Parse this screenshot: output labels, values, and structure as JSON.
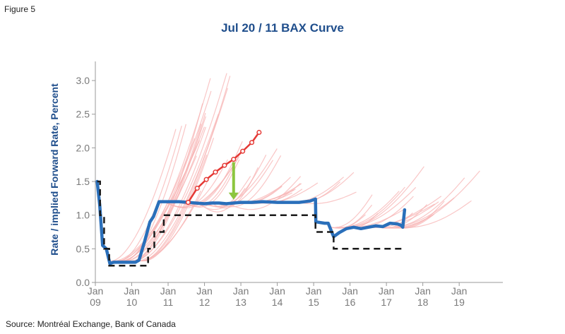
{
  "figure_label": "Figure 5",
  "source_note": "Source: Montréal Exchange, Bank of Canada",
  "colors": {
    "actual_rate": "#2a6fba",
    "policy_rate": "#1a1a1a",
    "forward_curves": "#f7b3b3",
    "highlight_curve": "#e53935",
    "arrow": "#8cc63f",
    "title": "#1f4e8c",
    "axis_text": "#7a7a7a"
  },
  "chart_data": {
    "type": "line",
    "title": "Jul 20 / 11 BAX Curve",
    "ylabel": "Rate / implied Forward Rate, Percent",
    "xlabel": "",
    "xlim": [
      2009,
      2020.2
    ],
    "ylim": [
      0,
      3.2
    ],
    "yticks": [
      "0.0",
      "0.5",
      "1.0",
      "1.5",
      "2.0",
      "2.5",
      "3.0"
    ],
    "xticks": [
      {
        "year": 2009,
        "month": "Jan",
        "yy": "09"
      },
      {
        "year": 2010,
        "month": "Jan",
        "yy": "10"
      },
      {
        "year": 2011,
        "month": "Jan",
        "yy": "11"
      },
      {
        "year": 2012,
        "month": "Jan",
        "yy": "12"
      },
      {
        "year": 2013,
        "month": "Jan",
        "yy": "13"
      },
      {
        "year": 2014,
        "month": "Jan",
        "yy": "14"
      },
      {
        "year": 2015,
        "month": "Jan",
        "yy": "15"
      },
      {
        "year": 2016,
        "month": "Jan",
        "yy": "16"
      },
      {
        "year": 2017,
        "month": "Jan",
        "yy": "17"
      },
      {
        "year": 2018,
        "month": "Jan",
        "yy": "18"
      },
      {
        "year": 2019,
        "month": "Jan",
        "yy": "19"
      }
    ],
    "grid": false,
    "series": [
      {
        "key": "actual",
        "style": "solid-thick",
        "x": [
          2009.05,
          2009.12,
          2009.2,
          2009.3,
          2009.4,
          2009.5,
          2009.7,
          2009.9,
          2010.1,
          2010.2,
          2010.35,
          2010.5,
          2010.6,
          2010.75,
          2011.0,
          2011.3,
          2011.55,
          2011.75,
          2012.0,
          2012.2,
          2012.4,
          2012.6,
          2012.8,
          2013.0,
          2013.3,
          2013.6,
          2014.0,
          2014.3,
          2014.6,
          2014.9,
          2015.05,
          2015.06,
          2015.3,
          2015.4,
          2015.55,
          2015.7,
          2015.9,
          2016.1,
          2016.3,
          2016.5,
          2016.7,
          2016.9,
          2017.1,
          2017.3,
          2017.4,
          2017.45,
          2017.5
        ],
        "y": [
          1.5,
          1.15,
          0.55,
          0.5,
          0.28,
          0.3,
          0.3,
          0.3,
          0.3,
          0.33,
          0.6,
          0.9,
          0.98,
          1.2,
          1.2,
          1.2,
          1.19,
          1.18,
          1.17,
          1.18,
          1.18,
          1.17,
          1.18,
          1.19,
          1.19,
          1.2,
          1.19,
          1.19,
          1.19,
          1.21,
          1.24,
          0.9,
          0.88,
          0.88,
          0.68,
          0.74,
          0.8,
          0.82,
          0.8,
          0.82,
          0.84,
          0.83,
          0.88,
          0.87,
          0.85,
          0.82,
          1.08
        ]
      },
      {
        "key": "policy",
        "style": "dashed",
        "x": [
          2009.05,
          2009.13,
          2009.13,
          2009.24,
          2009.24,
          2009.38,
          2009.38,
          2010.45,
          2010.45,
          2010.62,
          2010.62,
          2010.75,
          2010.75,
          2010.88,
          2010.88,
          2015.05,
          2015.05,
          2015.55,
          2015.55,
          2017.45
        ],
        "y": [
          1.5,
          1.5,
          1.0,
          1.0,
          0.5,
          0.5,
          0.25,
          0.25,
          0.5,
          0.5,
          0.75,
          0.75,
          0.75,
          0.75,
          1.0,
          1.0,
          0.75,
          0.75,
          0.5,
          0.5
        ]
      },
      {
        "key": "highlight",
        "style": "markers",
        "x": [
          2011.55,
          2011.8,
          2012.05,
          2012.3,
          2012.55,
          2012.8,
          2013.05,
          2013.3,
          2013.5
        ],
        "y": [
          1.19,
          1.4,
          1.53,
          1.64,
          1.74,
          1.83,
          1.95,
          2.08,
          2.23
        ]
      }
    ],
    "annotations": [
      {
        "type": "arrow",
        "x": 2012.8,
        "y_from": 1.83,
        "y_to": 1.23
      }
    ]
  }
}
